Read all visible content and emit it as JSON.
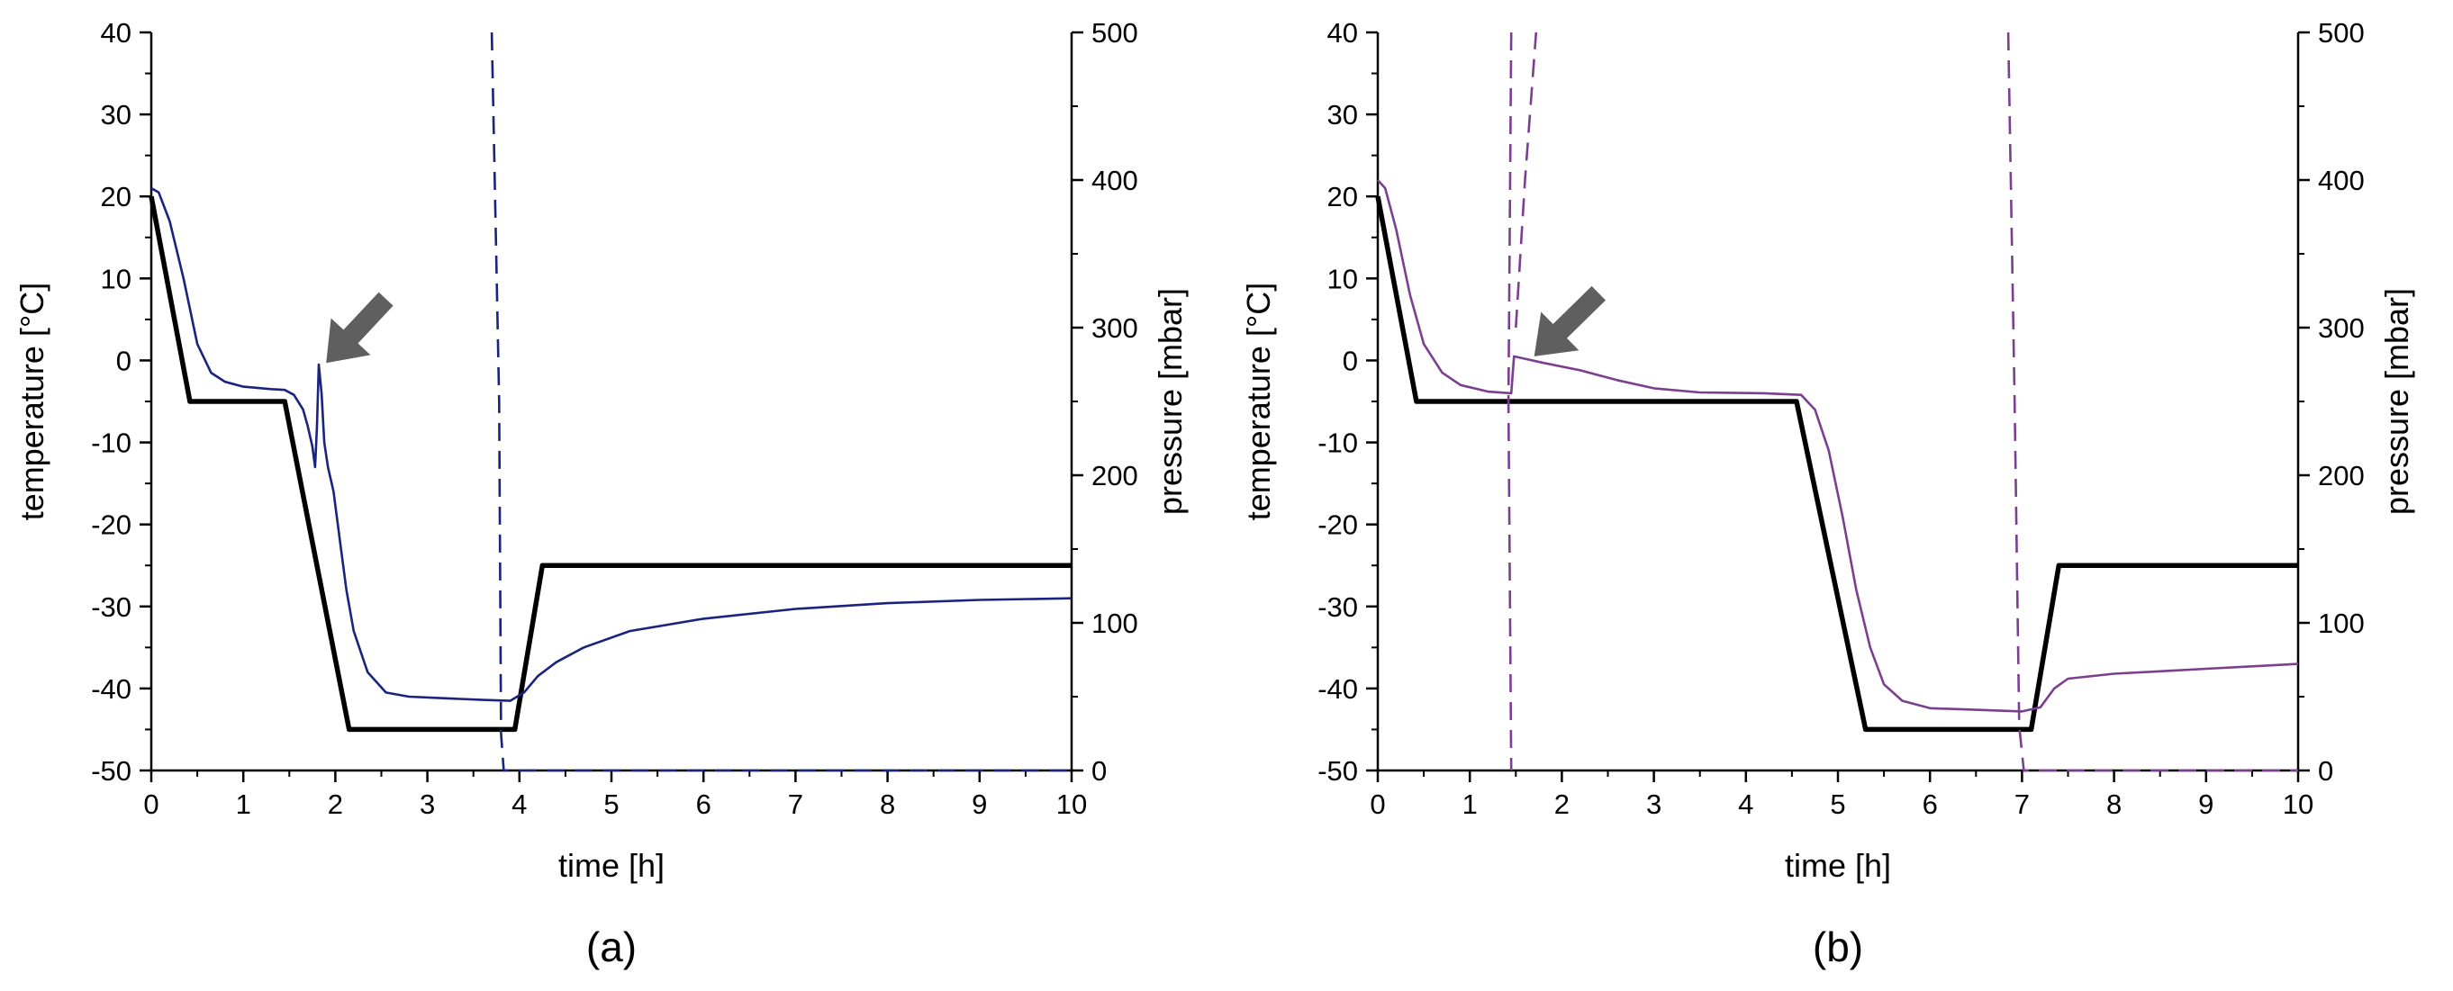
{
  "chart_data": [
    {
      "type": "line",
      "panel_label": "(a)",
      "xlabel": "time [h]",
      "ylabel": "temperature [°C]",
      "y2label": "pressure [mbar]",
      "xlim": [
        0,
        10
      ],
      "ylim": [
        -50,
        40
      ],
      "y2lim": [
        0,
        500
      ],
      "xticks": [
        "0",
        "1",
        "2",
        "3",
        "4",
        "5",
        "6",
        "7",
        "8",
        "9",
        "10"
      ],
      "yticks": [
        "-50",
        "-40",
        "-30",
        "-20",
        "-10",
        "0",
        "10",
        "20",
        "30",
        "40"
      ],
      "y2ticks": [
        "0",
        "100",
        "200",
        "300",
        "400",
        "500"
      ],
      "grid": false,
      "accent_color": "#1a237e",
      "series": [
        {
          "axis": "left",
          "style": "thick-black",
          "color": "#000000",
          "points": [
            [
              0,
              20
            ],
            [
              0.42,
              -5
            ],
            [
              1.45,
              -5
            ],
            [
              2.15,
              -45
            ],
            [
              3.95,
              -45
            ],
            [
              4.25,
              -25
            ],
            [
              10,
              -25
            ]
          ]
        },
        {
          "axis": "left",
          "style": "thin-solid",
          "color": "#1a237e",
          "points": [
            [
              0,
              21
            ],
            [
              0.08,
              20.5
            ],
            [
              0.2,
              17
            ],
            [
              0.35,
              10
            ],
            [
              0.5,
              2
            ],
            [
              0.65,
              -1.5
            ],
            [
              0.8,
              -2.6
            ],
            [
              1.0,
              -3.2
            ],
            [
              1.3,
              -3.5
            ],
            [
              1.45,
              -3.6
            ],
            [
              1.55,
              -4.2
            ],
            [
              1.65,
              -6
            ],
            [
              1.7,
              -8
            ],
            [
              1.75,
              -10.5
            ],
            [
              1.78,
              -13
            ],
            [
              1.8,
              -8
            ],
            [
              1.82,
              -0.5
            ],
            [
              1.85,
              -4
            ],
            [
              1.88,
              -10
            ],
            [
              1.92,
              -13
            ],
            [
              1.98,
              -16
            ],
            [
              2.05,
              -22
            ],
            [
              2.12,
              -28
            ],
            [
              2.2,
              -33
            ],
            [
              2.35,
              -38
            ],
            [
              2.55,
              -40.5
            ],
            [
              2.8,
              -41
            ],
            [
              3.2,
              -41.2
            ],
            [
              3.6,
              -41.4
            ],
            [
              3.9,
              -41.5
            ],
            [
              4.05,
              -40.5
            ],
            [
              4.2,
              -38.5
            ],
            [
              4.4,
              -36.8
            ],
            [
              4.7,
              -35
            ],
            [
              5.2,
              -33
            ],
            [
              6,
              -31.5
            ],
            [
              7,
              -30.3
            ],
            [
              8,
              -29.6
            ],
            [
              9,
              -29.2
            ],
            [
              10,
              -29
            ]
          ]
        },
        {
          "axis": "right",
          "style": "dashed",
          "color": "#1a237e",
          "points": [
            [
              3.7,
              500
            ],
            [
              3.78,
              250
            ],
            [
              3.8,
              25
            ],
            [
              3.83,
              0
            ],
            [
              10,
              0
            ]
          ]
        }
      ]
    },
    {
      "type": "line",
      "panel_label": "(b)",
      "xlabel": "time [h]",
      "ylabel": "temperature [°C]",
      "y2label": "pressure [mbar]",
      "xlim": [
        0,
        10
      ],
      "ylim": [
        -50,
        40
      ],
      "y2lim": [
        0,
        500
      ],
      "xticks": [
        "0",
        "1",
        "2",
        "3",
        "4",
        "5",
        "6",
        "7",
        "8",
        "9",
        "10"
      ],
      "yticks": [
        "-50",
        "-40",
        "-30",
        "-20",
        "-10",
        "0",
        "10",
        "20",
        "30",
        "40"
      ],
      "y2ticks": [
        "0",
        "100",
        "200",
        "300",
        "400",
        "500"
      ],
      "grid": false,
      "accent_color": "#7b3f8f",
      "series": [
        {
          "axis": "left",
          "style": "thick-black",
          "color": "#000000",
          "points": [
            [
              0,
              20
            ],
            [
              0.42,
              -5
            ],
            [
              4.55,
              -5
            ],
            [
              5.3,
              -45
            ],
            [
              7.1,
              -45
            ],
            [
              7.4,
              -25
            ],
            [
              10,
              -25
            ]
          ]
        },
        {
          "axis": "left",
          "style": "thin-solid",
          "color": "#7b3f8f",
          "points": [
            [
              0,
              22
            ],
            [
              0.08,
              21
            ],
            [
              0.2,
              16
            ],
            [
              0.35,
              8
            ],
            [
              0.5,
              2
            ],
            [
              0.7,
              -1.5
            ],
            [
              0.9,
              -3
            ],
            [
              1.2,
              -3.8
            ],
            [
              1.45,
              -4
            ],
            [
              1.48,
              0.5
            ],
            [
              1.6,
              0.2
            ],
            [
              1.8,
              -0.3
            ],
            [
              2.2,
              -1.2
            ],
            [
              2.6,
              -2.4
            ],
            [
              3,
              -3.4
            ],
            [
              3.5,
              -3.9
            ],
            [
              4.2,
              -4
            ],
            [
              4.6,
              -4.2
            ],
            [
              4.75,
              -6
            ],
            [
              4.9,
              -11
            ],
            [
              5.05,
              -19
            ],
            [
              5.2,
              -28
            ],
            [
              5.35,
              -35
            ],
            [
              5.5,
              -39.5
            ],
            [
              5.7,
              -41.5
            ],
            [
              6,
              -42.4
            ],
            [
              6.5,
              -42.6
            ],
            [
              7,
              -42.8
            ],
            [
              7.2,
              -42.3
            ],
            [
              7.35,
              -40
            ],
            [
              7.5,
              -38.8
            ],
            [
              8,
              -38.2
            ],
            [
              8.5,
              -37.9
            ],
            [
              9,
              -37.6
            ],
            [
              9.5,
              -37.3
            ],
            [
              10,
              -37
            ]
          ]
        },
        {
          "axis": "right",
          "style": "dashed",
          "color": "#7b3f8f",
          "points": [
            [
              1.45,
              500
            ],
            [
              1.42,
              250
            ],
            [
              1.45,
              0
            ]
          ]
        },
        {
          "axis": "right",
          "style": "dashed",
          "color": "#7b3f8f",
          "points": [
            [
              1.5,
              300
            ],
            [
              1.6,
              400
            ],
            [
              1.72,
              500
            ]
          ]
        },
        {
          "axis": "right",
          "style": "dashed",
          "color": "#7b3f8f",
          "points": [
            [
              6.85,
              500
            ],
            [
              6.92,
              250
            ],
            [
              6.97,
              30
            ],
            [
              7.02,
              0
            ],
            [
              10,
              0
            ]
          ]
        }
      ]
    }
  ],
  "annotations": [
    {
      "panel": 0,
      "type": "arrow",
      "icon": "arrow-icon",
      "tip": [
        1.9,
        -0.3
      ],
      "tail": [
        2.55,
        7.5
      ],
      "color": "#5f5f5f"
    },
    {
      "panel": 1,
      "type": "arrow",
      "icon": "arrow-icon",
      "tip": [
        1.7,
        0.5
      ],
      "tail": [
        2.4,
        8.2
      ],
      "color": "#5f5f5f"
    }
  ]
}
